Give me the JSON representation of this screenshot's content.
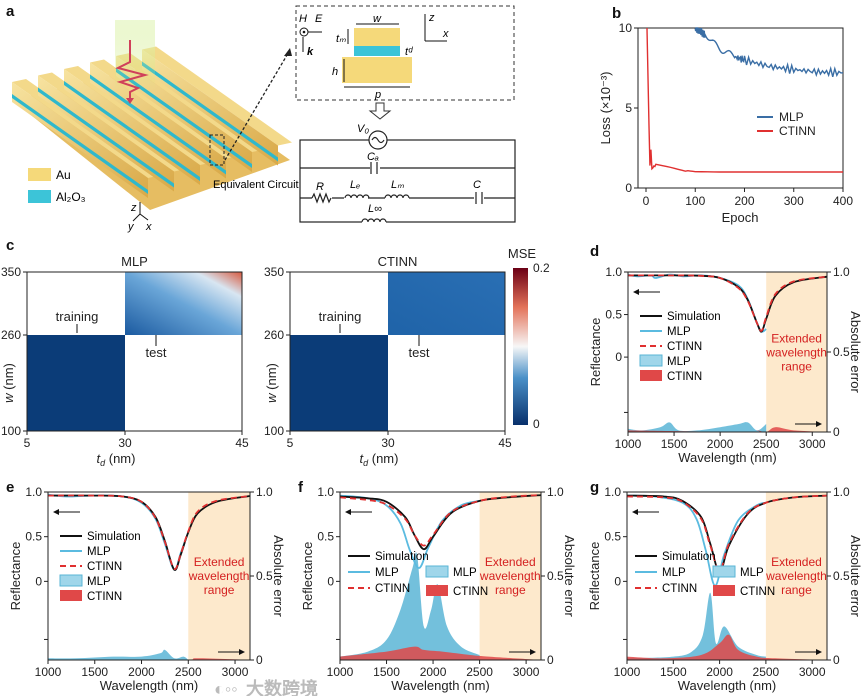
{
  "figure": {
    "panel_labels": [
      "a",
      "b",
      "c",
      "d",
      "e",
      "f",
      "g"
    ],
    "watermark": "大数跨境"
  },
  "panel_a": {
    "legend": [
      {
        "label": "Au",
        "color": "#f5d97a"
      },
      {
        "label": "Al₂O₃",
        "color": "#3cc4d8"
      }
    ],
    "axes": {
      "z": "z",
      "y": "y",
      "x": "x"
    },
    "schematic": {
      "H": "H",
      "E": "E",
      "k": "k",
      "w": "w",
      "tm": "tₘ",
      "td": "tᵈ",
      "h": "h",
      "p": "p",
      "z": "z",
      "x": "x"
    },
    "circuit_title": "Equivalent Circuit",
    "circuit": {
      "V0": "V₀",
      "CA": "Cₐ",
      "R": "R",
      "Le": "Lₑ",
      "Lm": "Lₘ",
      "C": "C",
      "Linf": "L∞"
    }
  },
  "colors": {
    "mlp_line": "#3a6ea5",
    "ctinn_line": "#e03030",
    "mlp_sky": "#5bbbe0",
    "mlp_fill": "#5ab5d6",
    "ctinn_fill": "#e04848",
    "sim": "#111111",
    "extended": "#fde9cc",
    "extended_text": "#d42020"
  },
  "chart_data": [
    {
      "panel": "b",
      "type": "line",
      "xlabel": "Epoch",
      "ylabel": "Loss (×10⁻³)",
      "xlim": [
        0,
        400
      ],
      "ylim": [
        0,
        10
      ],
      "xticks": [
        "0",
        "100",
        "200",
        "300",
        "400"
      ],
      "yticks": [
        "0",
        "5",
        "10"
      ],
      "legend_position": "center-right",
      "series": [
        {
          "name": "MLP",
          "points": [
            [
              100,
              10
            ],
            [
              110,
              9.8
            ],
            [
              120,
              9.6
            ],
            [
              150,
              8.8
            ],
            [
              180,
              8.2
            ],
            [
              200,
              8.0
            ],
            [
              250,
              7.6
            ],
            [
              300,
              7.4
            ],
            [
              350,
              7.25
            ],
            [
              400,
              7.2
            ]
          ]
        },
        {
          "name": "CTINN",
          "points": [
            [
              2,
              10
            ],
            [
              6,
              4
            ],
            [
              8,
              1.4
            ],
            [
              10,
              2.4
            ],
            [
              12,
              1.2
            ],
            [
              20,
              1.45
            ],
            [
              50,
              1.3
            ],
            [
              80,
              1.1
            ],
            [
              100,
              1.02
            ],
            [
              150,
              1.0
            ],
            [
              400,
              1.0
            ]
          ]
        }
      ]
    },
    {
      "panel": "c",
      "type": "heatmap",
      "colorbar": {
        "label": "MSE",
        "min_label": "0",
        "max_label": "0.2",
        "min": 0,
        "max": 0.2
      },
      "maps": [
        {
          "title": "MLP",
          "xlabel": "t_d (nm)",
          "ylabel": "w (nm)",
          "xticks": [
            "5",
            "30",
            "45"
          ],
          "yticks": [
            "100",
            "260",
            "350"
          ],
          "training_label": "training",
          "test_label": "test",
          "training_mse": 0.0,
          "test_mse_range": [
            0.02,
            0.2
          ]
        },
        {
          "title": "CTINN",
          "xlabel": "t_d (nm)",
          "ylabel": "w (nm)",
          "xticks": [
            "5",
            "30",
            "45"
          ],
          "yticks": [
            "100",
            "260",
            "350"
          ],
          "training_label": "training",
          "test_label": "test",
          "training_mse": 0.0,
          "test_mse_range": [
            0.01,
            0.03
          ]
        }
      ]
    },
    {
      "panel": "d",
      "type": "line",
      "xlabel": "Wavelength (nm)",
      "ylabel": "Reflectance",
      "y2label": "Absolute error",
      "xlim": [
        1000,
        3160
      ],
      "ylim": [
        -0.88,
        1.0
      ],
      "y2lim": [
        0,
        1
      ],
      "xticks": [
        "1000",
        "1500",
        "2000",
        "2500",
        "3000"
      ],
      "yticks": [
        "0",
        "0.5",
        "1.0"
      ],
      "y2ticks": [
        "0",
        "0.5",
        "1.0"
      ],
      "extended_range": [
        2500,
        3160
      ],
      "extended_label": [
        "Extended",
        "wavelength",
        "range"
      ],
      "legend": [
        "Simulation",
        "MLP",
        "CTINN",
        "MLP",
        "CTINN"
      ],
      "legend_layout": "column",
      "simulation": [
        [
          1000,
          0.96
        ],
        [
          1500,
          0.96
        ],
        [
          1800,
          0.955
        ],
        [
          2000,
          0.93
        ],
        [
          2200,
          0.82
        ],
        [
          2300,
          0.67
        ],
        [
          2400,
          0.4
        ],
        [
          2450,
          0.3
        ],
        [
          2500,
          0.45
        ],
        [
          2600,
          0.72
        ],
        [
          2800,
          0.88
        ],
        [
          3160,
          0.945
        ]
      ],
      "mlp": [
        [
          1000,
          0.97
        ],
        [
          1100,
          0.95
        ],
        [
          1250,
          0.96
        ],
        [
          1300,
          0.93
        ],
        [
          1450,
          0.97
        ],
        [
          1600,
          0.95
        ],
        [
          1800,
          0.96
        ],
        [
          2000,
          0.93
        ],
        [
          2200,
          0.84
        ],
        [
          2300,
          0.68
        ],
        [
          2400,
          0.4
        ],
        [
          2450,
          0.3
        ],
        [
          2500,
          0.33
        ]
      ],
      "ctinn": [
        [
          1000,
          0.96
        ],
        [
          1500,
          0.96
        ],
        [
          1800,
          0.955
        ],
        [
          2000,
          0.93
        ],
        [
          2200,
          0.81
        ],
        [
          2300,
          0.66
        ],
        [
          2400,
          0.4
        ],
        [
          2450,
          0.31
        ],
        [
          2500,
          0.47
        ],
        [
          2600,
          0.74
        ],
        [
          2800,
          0.89
        ],
        [
          3160,
          0.945
        ]
      ],
      "err_mlp": [
        [
          1000,
          0.02
        ],
        [
          1150,
          0.01
        ],
        [
          1350,
          0.03
        ],
        [
          1450,
          0.06
        ],
        [
          1550,
          0.01
        ],
        [
          1750,
          0.01
        ],
        [
          2000,
          0.03
        ],
        [
          2200,
          0.05
        ],
        [
          2300,
          0.06
        ],
        [
          2400,
          0.01
        ],
        [
          2500,
          0.05
        ]
      ],
      "err_ctinn": [
        [
          1000,
          0.01
        ],
        [
          2300,
          0.0
        ],
        [
          2400,
          0.01
        ],
        [
          2500,
          0.0
        ],
        [
          2600,
          0.03
        ],
        [
          2800,
          0.01
        ],
        [
          3160,
          0.0
        ]
      ]
    },
    {
      "panel": "e",
      "type": "line",
      "xlabel": "Wavelength (nm)",
      "ylabel": "Reflectance",
      "y2label": "Absolute error",
      "xlim": [
        1000,
        3160
      ],
      "ylim": [
        -0.88,
        1.0
      ],
      "y2lim": [
        0,
        1
      ],
      "xticks": [
        "1000",
        "1500",
        "2000",
        "2500",
        "3000"
      ],
      "yticks": [
        "0",
        "0.5",
        "1.0"
      ],
      "y2ticks": [
        "0",
        "0.5",
        "1.0"
      ],
      "extended_range": [
        2500,
        3160
      ],
      "extended_label": [
        "Extended",
        "wavelength",
        "range"
      ],
      "legend": [
        "Simulation",
        "MLP",
        "CTINN",
        "MLP",
        "CTINN"
      ],
      "legend_layout": "column",
      "simulation": [
        [
          1000,
          0.96
        ],
        [
          1500,
          0.96
        ],
        [
          1800,
          0.95
        ],
        [
          2000,
          0.89
        ],
        [
          2150,
          0.72
        ],
        [
          2250,
          0.45
        ],
        [
          2350,
          0.13
        ],
        [
          2420,
          0.3
        ],
        [
          2500,
          0.55
        ],
        [
          2600,
          0.76
        ],
        [
          2800,
          0.89
        ],
        [
          3160,
          0.955
        ]
      ],
      "mlp": [
        [
          1000,
          0.97
        ],
        [
          1200,
          0.95
        ],
        [
          1500,
          0.96
        ],
        [
          1800,
          0.95
        ],
        [
          2000,
          0.88
        ],
        [
          2150,
          0.7
        ],
        [
          2250,
          0.42
        ],
        [
          2350,
          0.13
        ],
        [
          2420,
          0.32
        ],
        [
          2500,
          0.55
        ]
      ],
      "ctinn": [
        [
          1000,
          0.96
        ],
        [
          1500,
          0.96
        ],
        [
          1800,
          0.95
        ],
        [
          2000,
          0.89
        ],
        [
          2150,
          0.71
        ],
        [
          2250,
          0.44
        ],
        [
          2350,
          0.14
        ],
        [
          2420,
          0.31
        ],
        [
          2500,
          0.56
        ],
        [
          2600,
          0.78
        ],
        [
          2800,
          0.9
        ],
        [
          3160,
          0.955
        ]
      ],
      "err_mlp": [
        [
          1000,
          0.01
        ],
        [
          1300,
          0.01
        ],
        [
          1700,
          0.02
        ],
        [
          2000,
          0.02
        ],
        [
          2200,
          0.04
        ],
        [
          2250,
          0.06
        ],
        [
          2350,
          0.01
        ],
        [
          2450,
          0.02
        ],
        [
          2500,
          0.0
        ]
      ],
      "err_ctinn": [
        [
          1000,
          0.0
        ],
        [
          2400,
          0.0
        ],
        [
          2600,
          0.01
        ],
        [
          3160,
          0.0
        ]
      ]
    },
    {
      "panel": "f",
      "type": "line",
      "xlabel": "Wavelength (nm)",
      "ylabel": "Reflectance",
      "y2label": "Absolute error",
      "xlim": [
        1000,
        3160
      ],
      "ylim": [
        -0.88,
        1.0
      ],
      "y2lim": [
        0,
        1
      ],
      "xticks": [
        "1000",
        "1500",
        "2000",
        "2500",
        "3000"
      ],
      "yticks": [
        "0",
        "0.5",
        "1.0"
      ],
      "y2ticks": [
        "0",
        "0.5",
        "1.0"
      ],
      "extended_range": [
        2500,
        3160
      ],
      "extended_label": [
        "Extended",
        "wavelength",
        "range"
      ],
      "legend": [
        "Simulation",
        "MLP",
        "CTINN",
        "MLP",
        "CTINN"
      ],
      "legend_layout": "two-column",
      "simulation": [
        [
          1000,
          0.95
        ],
        [
          1300,
          0.93
        ],
        [
          1500,
          0.89
        ],
        [
          1700,
          0.72
        ],
        [
          1800,
          0.52
        ],
        [
          1900,
          0.36
        ],
        [
          2000,
          0.5
        ],
        [
          2200,
          0.77
        ],
        [
          2500,
          0.9
        ],
        [
          2800,
          0.94
        ],
        [
          3160,
          0.965
        ]
      ],
      "mlp": [
        [
          1000,
          0.96
        ],
        [
          1300,
          0.93
        ],
        [
          1500,
          0.85
        ],
        [
          1650,
          0.65
        ],
        [
          1750,
          0.35
        ],
        [
          1850,
          0.15
        ],
        [
          1950,
          0.38
        ],
        [
          2100,
          0.68
        ],
        [
          2300,
          0.85
        ],
        [
          2500,
          0.9
        ]
      ],
      "ctinn": [
        [
          1000,
          0.94
        ],
        [
          1300,
          0.91
        ],
        [
          1500,
          0.86
        ],
        [
          1700,
          0.7
        ],
        [
          1800,
          0.52
        ],
        [
          1900,
          0.4
        ],
        [
          2000,
          0.52
        ],
        [
          2200,
          0.78
        ],
        [
          2500,
          0.9
        ],
        [
          2800,
          0.945
        ],
        [
          3160,
          0.965
        ]
      ],
      "err_mlp": [
        [
          1000,
          0.02
        ],
        [
          1300,
          0.05
        ],
        [
          1500,
          0.12
        ],
        [
          1650,
          0.3
        ],
        [
          1780,
          0.55
        ],
        [
          1830,
          0.62
        ],
        [
          1900,
          0.2
        ],
        [
          1980,
          0.3
        ],
        [
          2050,
          0.45
        ],
        [
          2150,
          0.2
        ],
        [
          2300,
          0.08
        ],
        [
          2500,
          0.03
        ]
      ],
      "err_ctinn": [
        [
          1000,
          0.02
        ],
        [
          1500,
          0.05
        ],
        [
          1800,
          0.08
        ],
        [
          1900,
          0.06
        ],
        [
          2100,
          0.05
        ],
        [
          2400,
          0.03
        ],
        [
          2600,
          0.02
        ],
        [
          3160,
          0.0
        ]
      ]
    },
    {
      "panel": "g",
      "type": "line",
      "xlabel": "Wavelength (nm)",
      "ylabel": "Reflectance",
      "y2label": "Absolute error",
      "xlim": [
        1000,
        3160
      ],
      "ylim": [
        -0.88,
        1.0
      ],
      "y2lim": [
        0,
        1
      ],
      "xticks": [
        "1000",
        "1500",
        "2000",
        "2500",
        "3000"
      ],
      "yticks": [
        "0",
        "0.5",
        "1.0"
      ],
      "y2ticks": [
        "0",
        "0.5",
        "1.0"
      ],
      "extended_range": [
        2500,
        3160
      ],
      "extended_label": [
        "Extended",
        "wavelength",
        "range"
      ],
      "legend": [
        "Simulation",
        "MLP",
        "CTINN",
        "MLP",
        "CTINN"
      ],
      "legend_layout": "two-column",
      "simulation": [
        [
          1000,
          0.96
        ],
        [
          1400,
          0.95
        ],
        [
          1600,
          0.9
        ],
        [
          1800,
          0.72
        ],
        [
          1900,
          0.42
        ],
        [
          2000,
          0.1
        ],
        [
          2100,
          0.4
        ],
        [
          2300,
          0.75
        ],
        [
          2500,
          0.88
        ],
        [
          2800,
          0.94
        ],
        [
          3160,
          0.96
        ]
      ],
      "mlp": [
        [
          1000,
          0.96
        ],
        [
          1300,
          0.95
        ],
        [
          1600,
          0.88
        ],
        [
          1750,
          0.7
        ],
        [
          1850,
          0.35
        ],
        [
          1950,
          -0.05
        ],
        [
          2050,
          0.3
        ],
        [
          2200,
          0.68
        ],
        [
          2400,
          0.85
        ],
        [
          2500,
          0.88
        ]
      ],
      "ctinn": [
        [
          1000,
          0.95
        ],
        [
          1400,
          0.94
        ],
        [
          1600,
          0.89
        ],
        [
          1800,
          0.7
        ],
        [
          1900,
          0.4
        ],
        [
          2000,
          0.12
        ],
        [
          2100,
          0.42
        ],
        [
          2300,
          0.76
        ],
        [
          2500,
          0.88
        ],
        [
          2800,
          0.94
        ],
        [
          3160,
          0.96
        ]
      ],
      "err_mlp": [
        [
          1000,
          0.01
        ],
        [
          1500,
          0.02
        ],
        [
          1700,
          0.05
        ],
        [
          1820,
          0.15
        ],
        [
          1900,
          0.4
        ],
        [
          1960,
          0.1
        ],
        [
          2050,
          0.2
        ],
        [
          2200,
          0.08
        ],
        [
          2400,
          0.03
        ],
        [
          2500,
          0.02
        ]
      ],
      "err_ctinn": [
        [
          1000,
          0.02
        ],
        [
          1400,
          0.01
        ],
        [
          1800,
          0.03
        ],
        [
          2000,
          0.1
        ],
        [
          2100,
          0.15
        ],
        [
          2200,
          0.06
        ],
        [
          2400,
          0.02
        ],
        [
          2600,
          0.01
        ],
        [
          3160,
          0.0
        ]
      ]
    }
  ]
}
